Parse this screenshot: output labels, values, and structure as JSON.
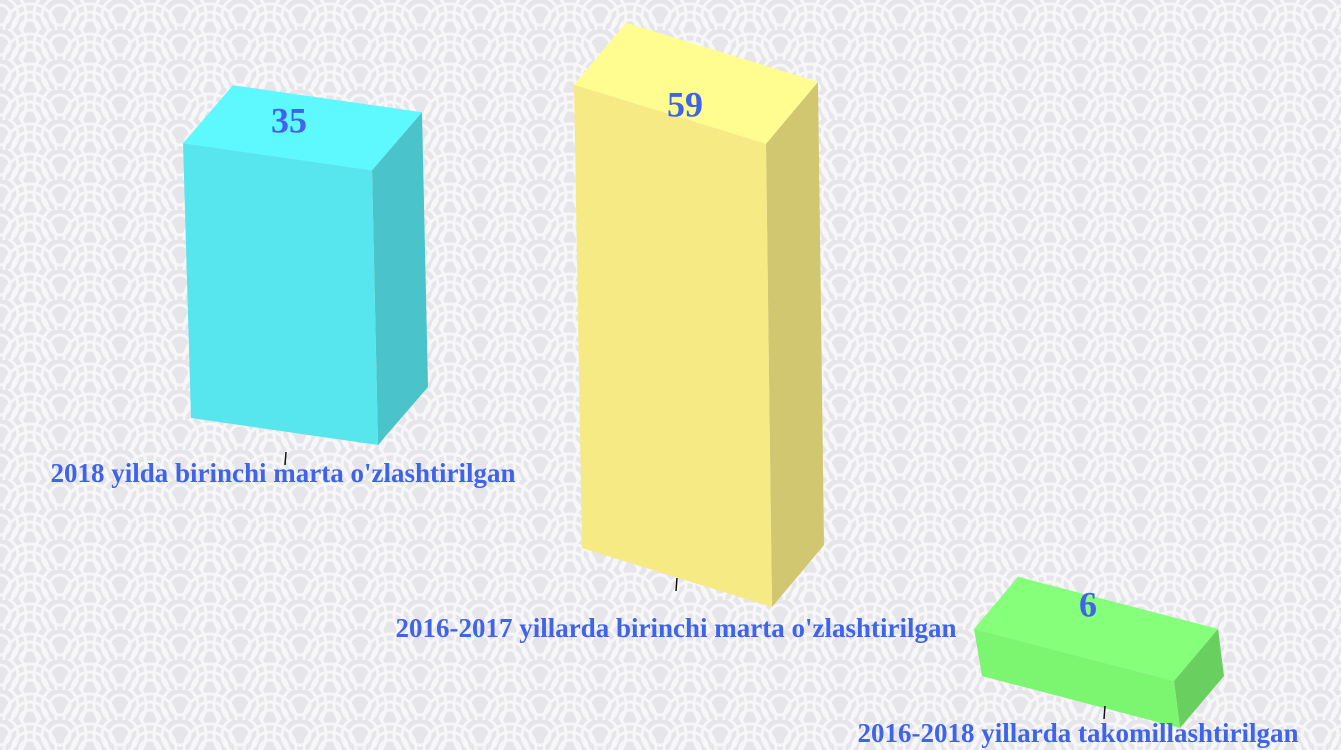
{
  "chart_data": {
    "type": "bar3d",
    "categories": [
      "2018 yilda birinchi marta o'zlashtirilgan",
      "2016-2017 yillarda birinchi marta o'zlashtirilgan",
      "2016-2018 yillarda takomillashtirilgan"
    ],
    "values": [
      35,
      59,
      6
    ],
    "colors": [
      "#57e6ee",
      "#f5ea84",
      "#7cf571"
    ]
  }
}
